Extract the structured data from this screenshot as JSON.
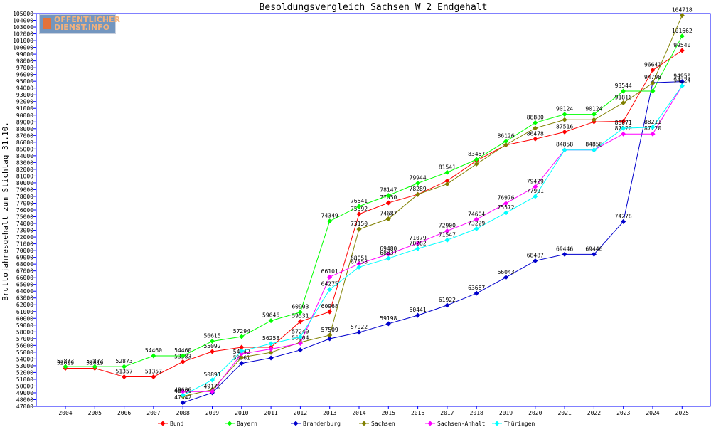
{
  "logo": {
    "line1": "OFFENTLICHER",
    "line2": "DIENST.INFO"
  },
  "chart_data": {
    "type": "line",
    "title": "Besoldungsvergleich Sachsen W 2 Endgehalt",
    "xlabel": "",
    "ylabel": "Bruttojahresgehalt zum Stichtag 31.10.",
    "x": [
      2004,
      2005,
      2006,
      2007,
      2008,
      2009,
      2010,
      2011,
      2012,
      2013,
      2014,
      2015,
      2016,
      2017,
      2018,
      2019,
      2020,
      2021,
      2022,
      2023,
      2024,
      2025
    ],
    "ylim": [
      47000,
      105000
    ],
    "ytick_step": 1000,
    "grid": false,
    "legend_position": "bottom",
    "series": [
      {
        "name": "Bund",
        "color": "#ff0000",
        "values": [
          52619,
          52619,
          51357,
          51357,
          53583,
          55092,
          55720,
          55720,
          59531,
          60968,
          75392,
          77050,
          78289,
          80286,
          83283,
          85576,
          86478,
          87516,
          89013,
          89091,
          96641,
          99540
        ],
        "labels": [
          "52619",
          "52619",
          "51357",
          "51357",
          "53583",
          "55092",
          "",
          "",
          "59531",
          "60968",
          "75392",
          "77050",
          "78289",
          "",
          "",
          "",
          "86478",
          "87516",
          "",
          "",
          "96641",
          "99540"
        ]
      },
      {
        "name": "Bayern",
        "color": "#00ff00",
        "values": [
          52873,
          52873,
          52873,
          54460,
          54460,
          56615,
          57294,
          59646,
          60903,
          74349,
          76541,
          78147,
          79944,
          81541,
          83457,
          86126,
          88880,
          90124,
          90124,
          93544,
          93544,
          101662
        ],
        "labels": [
          "52873",
          "52873",
          "52873",
          "54460",
          "54460",
          "56615",
          "57294",
          "59646",
          "60903",
          "74349",
          "76541",
          "78147",
          "79944",
          "81541",
          "83457",
          "86126",
          "88880",
          "90124",
          "90124",
          "93544",
          "",
          "101662"
        ]
      },
      {
        "name": "Brandenburg",
        "color": "#0000cc",
        "values": [
          null,
          null,
          null,
          null,
          47542,
          49012,
          53361,
          54150,
          55321,
          56987,
          57922,
          59198,
          60441,
          61922,
          63687,
          66043,
          68487,
          69446,
          69446,
          74278,
          94798,
          94950
        ],
        "labels": [
          "",
          "",
          "",
          "",
          "47542",
          "",
          "53361",
          "",
          "",
          "",
          "57922",
          "59198",
          "60441",
          "61922",
          "63687",
          "66043",
          "68487",
          "69446",
          "69446",
          "74278",
          "94798",
          "94950"
        ]
      },
      {
        "name": "Sachsen",
        "color": "#808000",
        "values": [
          null,
          null,
          null,
          null,
          48490,
          49462,
          54242,
          54960,
          56454,
          57509,
          73150,
          74687,
          78290,
          79827,
          82784,
          85614,
          88082,
          89315,
          89315,
          91816,
          94725,
          104718
        ],
        "labels": [
          "",
          "",
          "",
          "",
          "48490",
          "",
          "54242",
          "",
          "",
          "57509",
          "73150",
          "74687",
          "",
          "",
          "",
          "",
          "",
          "",
          "",
          "91816",
          "",
          "104718"
        ]
      },
      {
        "name": "Sachsen-Anhalt",
        "color": "#ff00ff",
        "values": [
          null,
          null,
          null,
          null,
          49174,
          49176,
          54767,
          55456,
          56304,
          66101,
          68051,
          69480,
          71079,
          72900,
          74604,
          76976,
          79429,
          84858,
          84858,
          87220,
          87220,
          94324
        ],
        "labels": [
          "",
          "",
          "",
          "",
          "",
          "49176",
          "",
          "",
          "56304",
          "66101",
          "68051",
          "69480",
          "71079",
          "72900",
          "74604",
          "76976",
          "79429",
          "",
          "",
          "87220",
          "87220",
          ""
        ]
      },
      {
        "name": "Thüringen",
        "color": "#00ffff",
        "values": [
          null,
          null,
          null,
          null,
          48636,
          50891,
          55168,
          56258,
          57240,
          64275,
          67553,
          68837,
          70282,
          71547,
          73229,
          75572,
          77991,
          84858,
          84858,
          88071,
          88211,
          94324
        ],
        "labels": [
          "",
          "",
          "",
          "",
          "48636",
          "50891",
          "",
          "56258",
          "57240",
          "64275",
          "67553",
          "68837",
          "70282",
          "71547",
          "73229",
          "75572",
          "77991",
          "84858",
          "84858",
          "88071",
          "88211",
          "94324"
        ]
      }
    ]
  }
}
